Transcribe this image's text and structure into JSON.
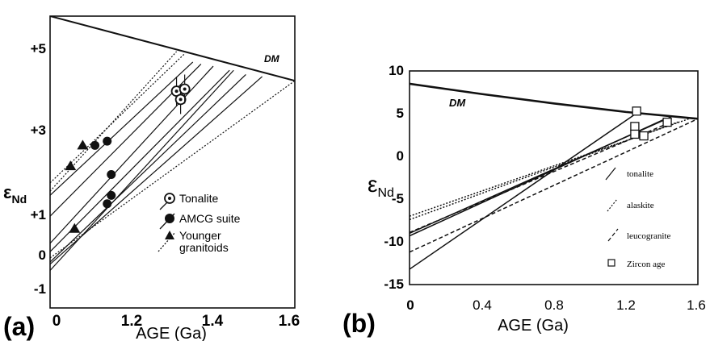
{
  "chart_data": [
    {
      "type": "line",
      "panel_label": "(a)",
      "xlabel": "AGE (Ga)",
      "ylabel": "εNd",
      "xlim": [
        1.0,
        1.6
      ],
      "ylim": [
        -1,
        6
      ],
      "x_ticks": [
        "0",
        "1.2",
        "1.4",
        "1.6"
      ],
      "y_ticks": [
        "-1",
        "0",
        "+1",
        "+3",
        "+5"
      ],
      "curve_label": "DM",
      "dm_curve": [
        [
          1.0,
          6.0
        ],
        [
          1.6,
          4.45
        ]
      ],
      "series": [
        {
          "name": "Tonalite",
          "marker": "circle-dot",
          "points": [
            [
              1.31,
              4.2
            ],
            [
              1.32,
              4.0
            ],
            [
              1.33,
              4.25
            ]
          ],
          "lines": [
            [
              [
                1.0,
                1.7
              ],
              [
                1.35,
                4.9
              ]
            ],
            [
              [
                1.0,
                1.2
              ],
              [
                1.37,
                4.85
              ]
            ]
          ]
        },
        {
          "name": "AMCG suite",
          "marker": "circle",
          "points": [
            [
              1.11,
              2.9
            ],
            [
              1.14,
              3.0
            ],
            [
              1.15,
              2.2
            ],
            [
              1.15,
              1.7
            ],
            [
              1.14,
              1.5
            ]
          ],
          "lines": [
            [
              [
                1.0,
                0.55
              ],
              [
                1.4,
                4.8
              ]
            ],
            [
              [
                1.0,
                0.35
              ],
              [
                1.44,
                4.7
              ]
            ],
            [
              [
                1.0,
                0.1
              ],
              [
                1.48,
                4.6
              ]
            ],
            [
              [
                1.0,
                0.05
              ],
              [
                1.52,
                4.55
              ]
            ],
            [
              [
                1.0,
                -0.1
              ],
              [
                1.45,
                4.7
              ]
            ]
          ]
        },
        {
          "name": "Younger granitoids",
          "marker": "triangle",
          "points": [
            [
              1.05,
              2.4
            ],
            [
              1.08,
              2.9
            ],
            [
              1.06,
              0.9
            ]
          ],
          "lines": [
            [
              [
                1.0,
                2.0
              ],
              [
                1.33,
                5.1
              ]
            ],
            [
              [
                1.0,
                1.8
              ],
              [
                1.31,
                5.15
              ]
            ],
            [
              [
                1.0,
                0.2
              ],
              [
                1.6,
                4.45
              ]
            ]
          ]
        }
      ]
    },
    {
      "type": "line",
      "panel_label": "(b)",
      "xlabel": "AGE (Ga)",
      "ylabel": "εNd",
      "xlim": [
        0.0,
        1.6
      ],
      "ylim": [
        -15,
        10
      ],
      "x_ticks": [
        "0",
        "0.4",
        "0.8",
        "1.2",
        "1.6"
      ],
      "y_ticks": [
        "10",
        "5",
        "0",
        "-5",
        "-10",
        "-15"
      ],
      "curve_label": "DM",
      "dm_curve": [
        [
          0.0,
          8.5
        ],
        [
          0.4,
          7.3
        ],
        [
          0.8,
          6.2
        ],
        [
          1.2,
          5.2
        ],
        [
          1.6,
          4.4
        ]
      ],
      "series": [
        {
          "name": "tonalite",
          "lines": [
            [
              [
                0.0,
                -9.0
              ],
              [
                1.45,
                4.6
              ]
            ],
            [
              [
                0.0,
                -9.3
              ],
              [
                1.42,
                4.4
              ]
            ],
            [
              [
                0.0,
                -13.2
              ],
              [
                1.27,
                5.2
              ]
            ]
          ]
        },
        {
          "name": "alaskite",
          "lines": [
            [
              [
                0.0,
                -7.0
              ],
              [
                1.55,
                4.4
              ]
            ],
            [
              [
                0.0,
                -7.4
              ],
              [
                1.5,
                4.1
              ]
            ]
          ]
        },
        {
          "name": "leucogranite",
          "lines": [
            [
              [
                0.0,
                -11.2
              ],
              [
                1.6,
                4.4
              ]
            ],
            [
              [
                0.0,
                -8.9
              ],
              [
                1.45,
                4.0
              ]
            ]
          ]
        },
        {
          "name": "Zircon age",
          "marker": "square",
          "points": [
            [
              1.26,
              5.3
            ],
            [
              1.25,
              3.5
            ],
            [
              1.25,
              2.6
            ],
            [
              1.3,
              2.4
            ],
            [
              1.43,
              4.0
            ]
          ]
        }
      ]
    }
  ],
  "legend_a": {
    "entries": [
      "Tonalite",
      "AMCG suite",
      "Younger",
      "granitoids"
    ]
  },
  "legend_b": {
    "entries": [
      "tonalite",
      "alaskite",
      "leucogranite",
      "Zircon age"
    ]
  },
  "colors": {
    "ink": "#111111",
    "paper": "#ffffff"
  }
}
